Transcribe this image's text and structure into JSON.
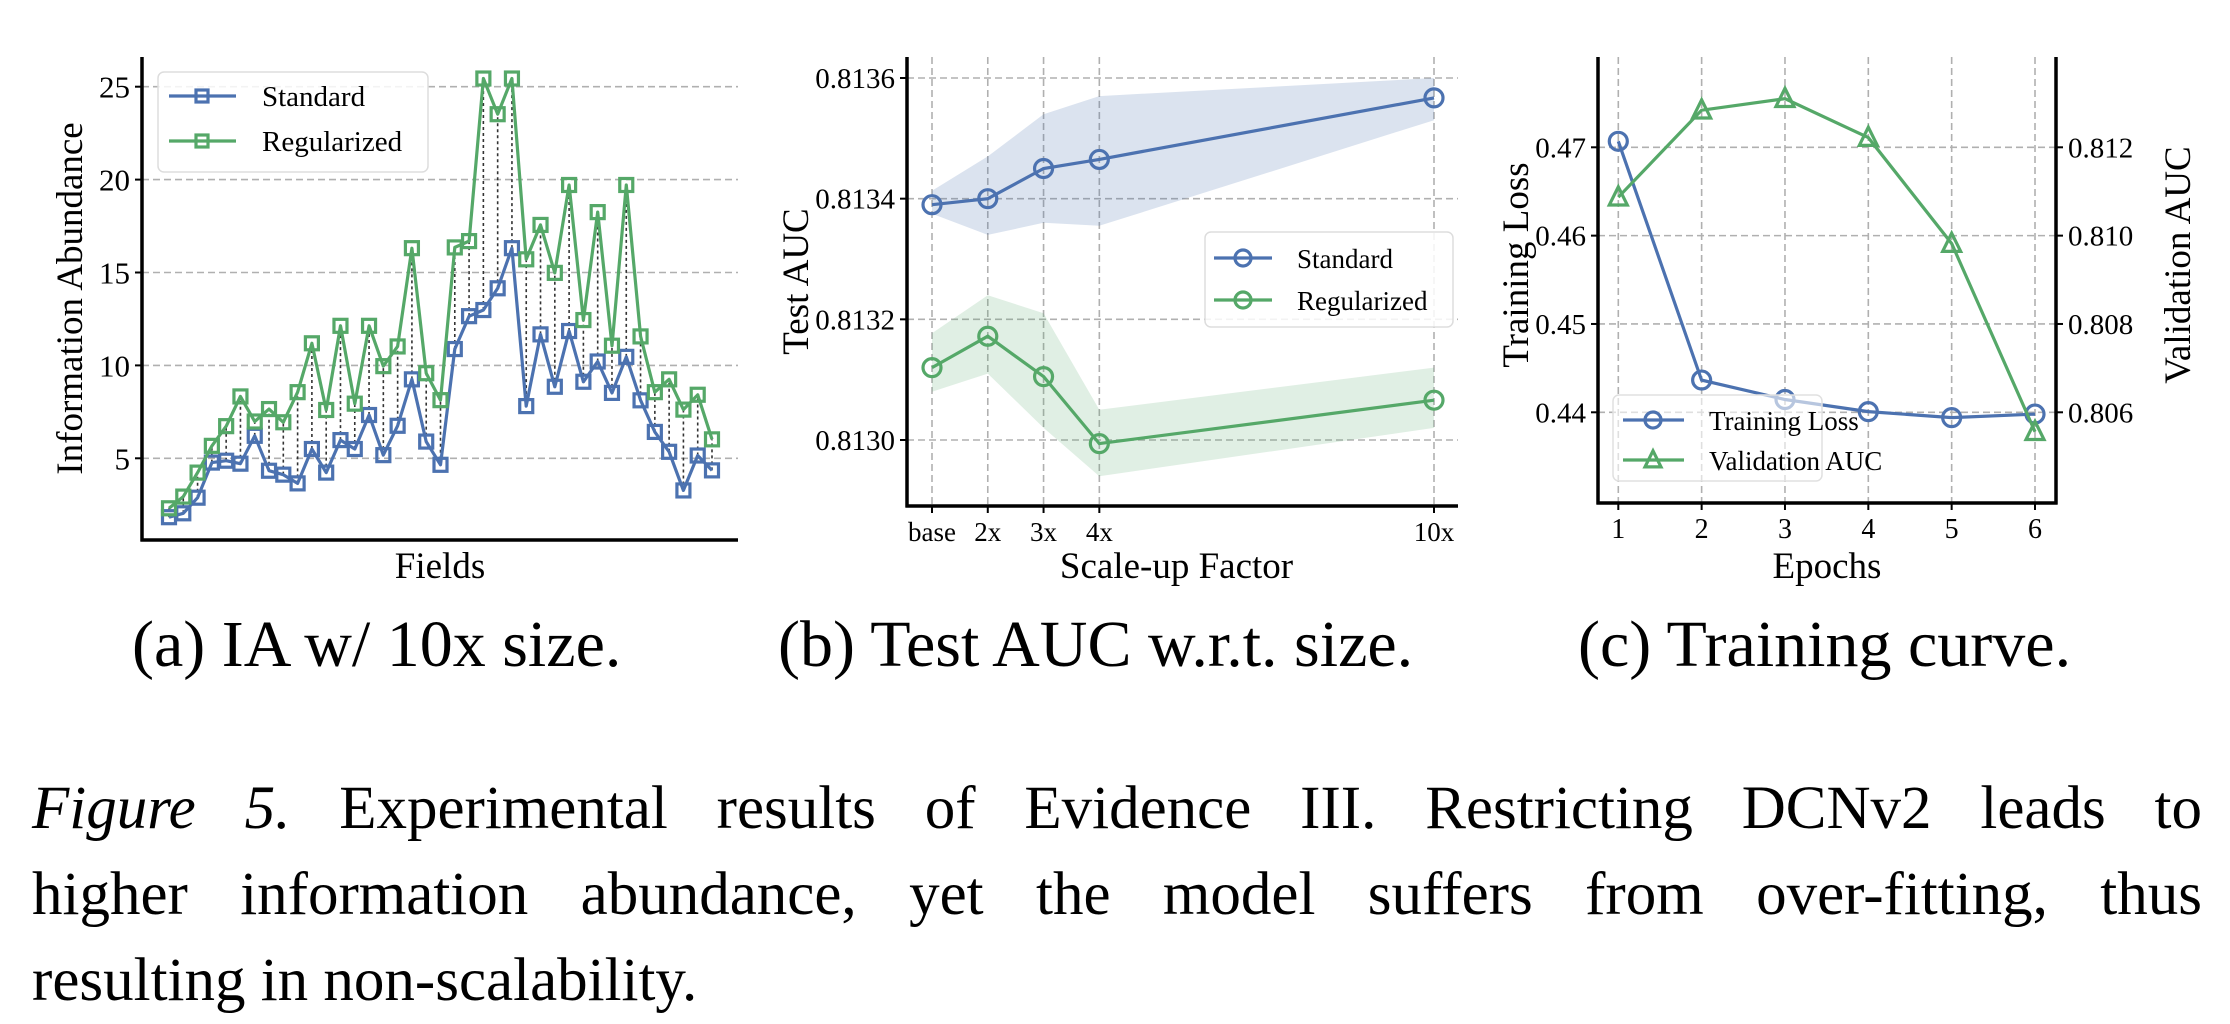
{
  "colors": {
    "standard": "#4c72b0",
    "regularized": "#55a868",
    "grid": "#b0b0b0",
    "connector": "#333333"
  },
  "subcaptions": {
    "a": "(a) IA w/ 10x size.",
    "b": "(b) Test AUC w.r.t. size.",
    "c": "(c) Training curve."
  },
  "caption": {
    "label": "Figure 5.",
    "line1": "Experimental results of Evidence III. Restricting DCNv2 leads to",
    "line2": "higher information abundance, yet the model suffers from over-fitting, thus",
    "line3": "resulting in non-scalability."
  },
  "chart_data": [
    {
      "id": "a",
      "type": "line",
      "title": "",
      "xlabel": "Fields",
      "ylabel": "Information Abundance",
      "ylim": [
        0.58,
        26.6
      ],
      "yticks": [
        5,
        10,
        15,
        20,
        25
      ],
      "ytick_labels": [
        "5",
        "10",
        "15",
        "20",
        "25"
      ],
      "grid": "y-dashed",
      "legend": {
        "placement": "top-left",
        "entries": [
          "Standard",
          "Regularized"
        ]
      },
      "marker": "square",
      "connectors": "dotted vertical lines between paired points",
      "x": [
        1,
        2,
        3,
        4,
        5,
        6,
        7,
        8,
        9,
        10,
        11,
        12,
        13,
        14,
        15,
        16,
        17,
        18,
        19,
        20,
        21,
        22,
        23,
        24,
        25,
        26,
        27,
        28,
        29,
        30,
        31,
        32,
        33,
        34,
        35,
        36,
        37,
        38,
        39
      ],
      "series": [
        {
          "name": "Standard",
          "values": [
            1.83,
            2.04,
            2.88,
            4.77,
            4.87,
            4.71,
            6.21,
            4.33,
            4.12,
            3.65,
            5.5,
            4.23,
            5.98,
            5.5,
            7.33,
            5.17,
            6.75,
            9.25,
            5.9,
            4.65,
            10.88,
            12.65,
            12.98,
            14.15,
            16.31,
            7.81,
            11.67,
            8.85,
            11.85,
            9.12,
            10.21,
            8.52,
            10.46,
            8.12,
            6.42,
            5.35,
            3.27,
            5.15,
            4.35
          ]
        },
        {
          "name": "Regularized",
          "values": [
            2.31,
            2.94,
            4.23,
            5.67,
            6.73,
            8.33,
            6.98,
            7.65,
            6.94,
            8.56,
            11.19,
            7.6,
            12.13,
            7.94,
            12.13,
            9.96,
            11.02,
            16.31,
            9.58,
            8.13,
            16.35,
            16.69,
            25.44,
            23.52,
            25.44,
            15.71,
            17.56,
            14.98,
            19.71,
            12.44,
            18.25,
            11.06,
            19.71,
            11.56,
            8.56,
            9.25,
            7.62,
            8.42,
            6.02
          ]
        }
      ]
    },
    {
      "id": "b",
      "type": "line",
      "title": "",
      "xlabel": "Scale-up Factor",
      "ylabel": "Test AUC",
      "x": [
        1,
        2,
        3,
        4,
        10
      ],
      "xtick_labels": [
        "base",
        "2x",
        "3x",
        "4x",
        "10x"
      ],
      "xlim": [
        0.55,
        10.4
      ],
      "ylim": [
        0.8129,
        0.81364
      ],
      "yticks": [
        0.813,
        0.8132,
        0.8134,
        0.8136
      ],
      "ytick_labels": [
        "0.8130",
        "0.8132",
        "0.8134",
        "0.8136"
      ],
      "grid": "both-dashed",
      "legend": {
        "placement": "center-right",
        "entries": [
          "Standard",
          "Regularized"
        ]
      },
      "marker": "circle",
      "series": [
        {
          "name": "Standard",
          "values": [
            0.81339,
            0.8134,
            0.81345,
            0.813465,
            0.813567
          ],
          "band_upper": [
            0.813413,
            0.81347,
            0.81354,
            0.81357,
            0.8136
          ],
          "band_lower": [
            0.813375,
            0.81334,
            0.81336,
            0.813355,
            0.81353
          ]
        },
        {
          "name": "Regularized",
          "values": [
            0.81312,
            0.813172,
            0.813105,
            0.812994,
            0.813066
          ],
          "band_upper": [
            0.813177,
            0.81324,
            0.81321,
            0.81305,
            0.81312
          ],
          "band_lower": [
            0.81308,
            0.81311,
            0.81302,
            0.81294,
            0.81302
          ]
        }
      ]
    },
    {
      "id": "c",
      "type": "line",
      "title": "",
      "xlabel": "Epochs",
      "ylabel": "Training Loss",
      "ylabel_right": "Validation AUC",
      "x": [
        1,
        2,
        3,
        4,
        5,
        6
      ],
      "xtick_labels": [
        "1",
        "2",
        "3",
        "4",
        "5",
        "6"
      ],
      "xlim": [
        0.74,
        6.25
      ],
      "ylim": [
        0.42995,
        0.47995
      ],
      "ylim_right": [
        0.80399,
        0.81399
      ],
      "yticks": [
        0.44,
        0.45,
        0.46,
        0.47
      ],
      "ytick_labels": [
        "0.44",
        "0.45",
        "0.46",
        "0.47"
      ],
      "yticks_right": [
        0.806,
        0.808,
        0.81,
        0.812
      ],
      "ytick_labels_right": [
        "0.806",
        "0.808",
        "0.810",
        "0.812"
      ],
      "grid": "both-dashed",
      "legend": {
        "placement": "bottom-left",
        "entries": [
          "Training Loss",
          "Validation AUC"
        ]
      },
      "series": [
        {
          "name": "Training Loss",
          "axis": "left",
          "marker": "circle",
          "values": [
            0.47068,
            0.44365,
            0.44145,
            0.44008,
            0.4394,
            0.4398
          ]
        },
        {
          "name": "Validation AUC",
          "axis": "right",
          "marker": "triangle",
          "values": [
            0.81087,
            0.81284,
            0.8131,
            0.81222,
            0.80982,
            0.80556
          ]
        }
      ]
    }
  ]
}
